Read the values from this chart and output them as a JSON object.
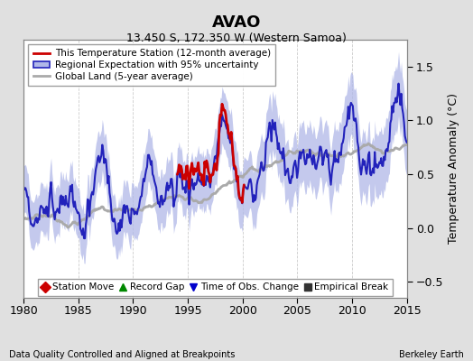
{
  "title": "AVAO",
  "subtitle": "13.450 S, 172.350 W (Western Samoa)",
  "xlabel_left": "Data Quality Controlled and Aligned at Breakpoints",
  "xlabel_right": "Berkeley Earth",
  "ylabel": "Temperature Anomaly (°C)",
  "xlim": [
    1980,
    2015
  ],
  "ylim": [
    -0.65,
    1.75
  ],
  "yticks": [
    -0.5,
    0,
    0.5,
    1.0,
    1.5
  ],
  "xticks": [
    1980,
    1985,
    1990,
    1995,
    2000,
    2005,
    2010,
    2015
  ],
  "bg_color": "#e0e0e0",
  "plot_bg_color": "#ffffff",
  "blue_line_color": "#2222bb",
  "blue_fill_color": "#b0b8e8",
  "red_line_color": "#cc0000",
  "gray_line_color": "#aaaaaa",
  "grid_color": "#cccccc",
  "legend1_entries": [
    {
      "label": "This Temperature Station (12-month average)",
      "color": "#cc0000",
      "lw": 2.0
    },
    {
      "label": "Regional Expectation with 95% uncertainty",
      "color": "#2222bb",
      "lw": 1.5,
      "fill_color": "#b0b8e8"
    },
    {
      "label": "Global Land (5-year average)",
      "color": "#aaaaaa",
      "lw": 2.0
    }
  ],
  "legend2_entries": [
    {
      "label": "Station Move",
      "marker": "D",
      "color": "#cc0000"
    },
    {
      "label": "Record Gap",
      "marker": "^",
      "color": "#008800"
    },
    {
      "label": "Time of Obs. Change",
      "marker": "v",
      "color": "#0000cc"
    },
    {
      "label": "Empirical Break",
      "marker": "s",
      "color": "#333333"
    }
  ]
}
